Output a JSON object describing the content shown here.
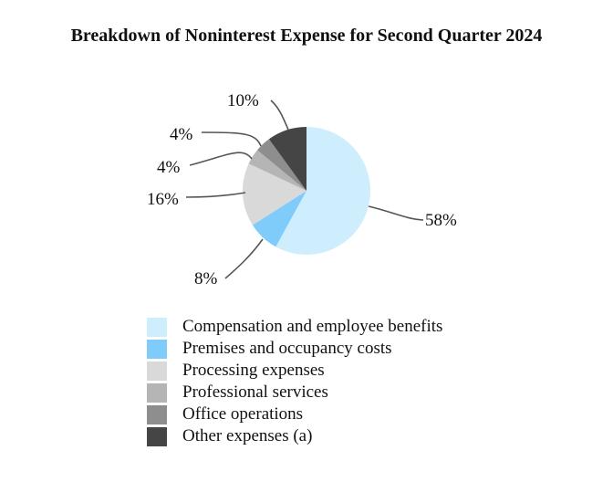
{
  "chart_data": {
    "type": "pie",
    "title": "Breakdown of Noninterest Expense for Second Quarter 2024",
    "categories": [
      "Compensation and employee benefits",
      "Premises and occupancy costs",
      "Processing expenses",
      "Professional services",
      "Office operations",
      "Other expenses (a)"
    ],
    "values": [
      58,
      8,
      16,
      4,
      4,
      10
    ],
    "data_labels": [
      "58%",
      "8%",
      "16%",
      "4%",
      "4%",
      "10%"
    ],
    "colors": [
      "#cfeefd",
      "#7fcbfa",
      "#d9d9d9",
      "#b5b5b5",
      "#8e8e8e",
      "#454545"
    ],
    "start": "top",
    "direction": "clockwise",
    "legend_position": "bottom"
  }
}
